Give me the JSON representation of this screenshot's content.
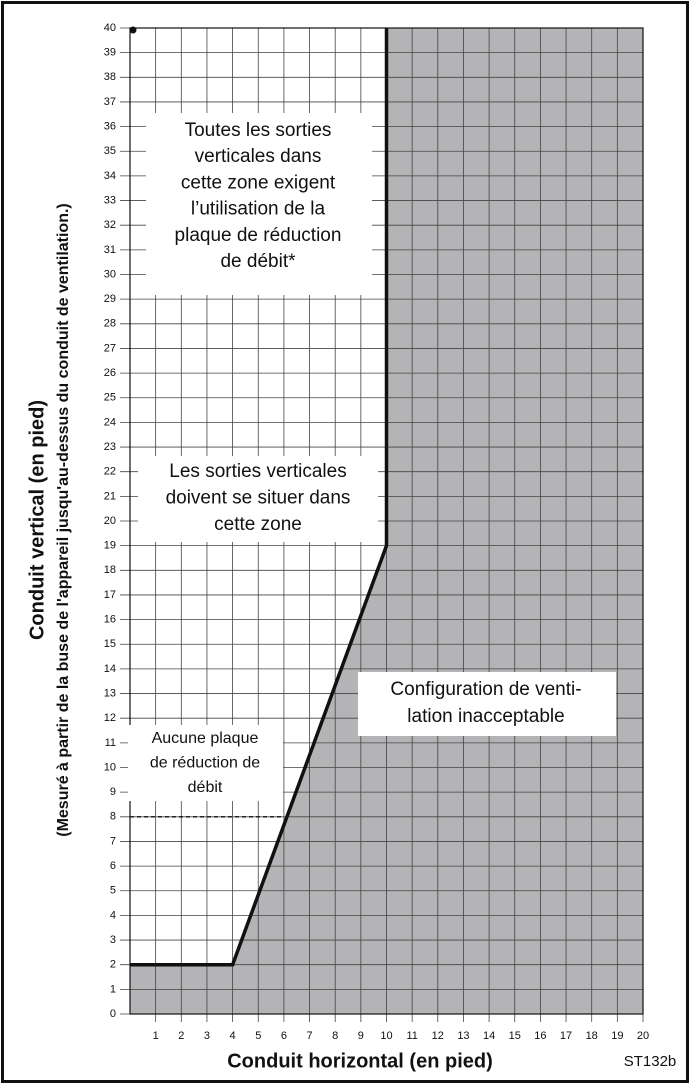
{
  "chart_data": {
    "type": "region",
    "xlabel": "Conduit horizontal (en pied)",
    "ylabel": "Conduit vertical (en pied)",
    "ylabel_note": "(Mesuré à partir de la buse de l'appareil jusqu'au-dessus du conduit de ventilation.)",
    "code": "ST132b",
    "xlim": [
      0,
      20
    ],
    "ylim": [
      0,
      40
    ],
    "xticks": [
      1,
      2,
      3,
      4,
      5,
      6,
      7,
      8,
      9,
      10,
      11,
      12,
      13,
      14,
      15,
      16,
      17,
      18,
      19,
      20
    ],
    "yticks": [
      0,
      1,
      2,
      3,
      4,
      5,
      6,
      7,
      8,
      9,
      10,
      11,
      12,
      13,
      14,
      15,
      16,
      17,
      18,
      19,
      20,
      21,
      22,
      23,
      24,
      25,
      26,
      27,
      28,
      29,
      30,
      31,
      32,
      33,
      34,
      35,
      36,
      37,
      38,
      39,
      40
    ],
    "grid": true,
    "shade_color": "#b4b4b6",
    "series": [
      {
        "color": "#111111",
        "x": [
          0,
          4,
          10,
          10
        ],
        "values": [
          2,
          2,
          19,
          40
        ]
      }
    ],
    "reference_line": {
      "color": "#111111",
      "x": [
        0,
        6
      ],
      "values": [
        8,
        8
      ]
    },
    "annotations": [
      [
        "Toutes les sorties",
        "verticales dans",
        "cette zone exigent",
        "l’utilisation de la",
        "plaque de réduction",
        "de débit*"
      ],
      [
        "Les sorties verticales",
        "doivent se situer dans",
        "cette zone"
      ],
      [
        "Configuration de venti-",
        "lation inacceptable"
      ],
      [
        "Aucune plaque",
        "de réduction de",
        "débit"
      ]
    ]
  }
}
